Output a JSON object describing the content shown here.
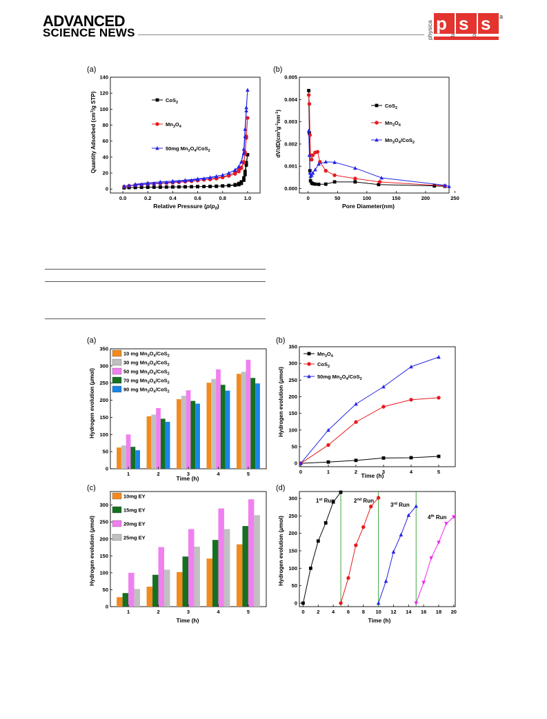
{
  "header": {
    "brand_line1": "ADVANCED",
    "brand_line2": "SCIENCE NEWS",
    "journal_logo": {
      "words": [
        "physica",
        "status",
        "solidi"
      ],
      "letters": [
        "p",
        "s",
        "s"
      ],
      "suffix": "a"
    },
    "accent_color": "#e3342f"
  },
  "figure1": {
    "panels": [
      {
        "label": "(a)",
        "xlabel_main": "Relative Pressure (",
        "xlabel_p": "p",
        "xlabel_mid": "/",
        "xlabel_p0": "p",
        "xlabel_sub": "0",
        "xlabel_end": ")",
        "ylabel_main": "Quantity Adsorbed (cm",
        "ylabel_sup": "3",
        "ylabel_end": "/g STP)",
        "xticks": [
          "0.0",
          "0.2",
          "0.4",
          "0.6",
          "0.8",
          "1.0"
        ],
        "yticks": [
          "0",
          "20",
          "40",
          "60",
          "80",
          "100",
          "120",
          "140"
        ]
      },
      {
        "label": "(b)",
        "xlabel": "Pore Diameter(nm)",
        "ylabel_pre": "dV/dD(cm",
        "ylabel_sup1": "3",
        "ylabel_mid": "g",
        "ylabel_sup2": "-1",
        "ylabel_mid2": "nm",
        "ylabel_sup3": "-1",
        "ylabel_end": ")",
        "xticks": [
          "0",
          "50",
          "100",
          "150",
          "200",
          "250"
        ],
        "yticks": [
          "0.000",
          "0.001",
          "0.002",
          "0.003",
          "0.004",
          "0.005"
        ]
      }
    ]
  },
  "figure2": {
    "panels": [
      {
        "label": "(a)",
        "xlabel": "Time (h)",
        "ylabel_pre": "Hydrogen evolution (",
        "ylabel_mu": "μ",
        "ylabel_post": "mol)",
        "xticks": [
          "1",
          "2",
          "3",
          "4",
          "5"
        ],
        "yticks": [
          "0",
          "50",
          "100",
          "150",
          "200",
          "250",
          "300",
          "350"
        ]
      },
      {
        "label": "(b)",
        "xlabel": "Time (h)",
        "ylabel_pre": "Hydrogen evolution (",
        "ylabel_mu": "μ",
        "ylabel_post": "mol)",
        "xticks": [
          "0",
          "1",
          "2",
          "3",
          "4",
          "5"
        ],
        "yticks": [
          "0",
          "50",
          "100",
          "150",
          "200",
          "250",
          "300",
          "350"
        ]
      },
      {
        "label": "(c)",
        "xlabel": "Time (h)",
        "ylabel_pre": "Hydrogen evolution (",
        "ylabel_mu": "μ",
        "ylabel_post": "mol)",
        "xticks": [
          "1",
          "2",
          "3",
          "4",
          "5"
        ],
        "yticks": [
          "0",
          "50",
          "100",
          "150",
          "200",
          "250",
          "300"
        ]
      },
      {
        "label": "(d)",
        "xlabel": "Time (h)",
        "ylabel_pre": "Hydrogen evolution (",
        "ylabel_mu": "μ",
        "ylabel_post": "mol)",
        "xticks": [
          "0",
          "2",
          "4",
          "6",
          "8",
          "10",
          "12",
          "14",
          "16",
          "18",
          "20"
        ],
        "yticks": [
          "0",
          "50",
          "100",
          "150",
          "200",
          "250",
          "300"
        ],
        "run_labels": [
          {
            "num": "1",
            "sup": "st",
            "word": " Run"
          },
          {
            "num": "2",
            "sup": "nd",
            "word": " Run"
          },
          {
            "num": "3",
            "sup": "rd",
            "word": " Run"
          },
          {
            "num": "4",
            "sup": "th",
            "word": " Run"
          }
        ]
      }
    ]
  },
  "chart_data": [
    {
      "type": "line",
      "panel": "fig1-a",
      "xlabel": "Relative Pressure (p/p0)",
      "ylabel": "Quantity Adsorbed (cm3/g STP)",
      "xlim": [
        -0.1,
        1.1
      ],
      "ylim": [
        -5,
        140
      ],
      "series": [
        {
          "name": "CoS2",
          "color": "#000000",
          "marker": "square",
          "x": [
            0.01,
            0.05,
            0.1,
            0.15,
            0.2,
            0.25,
            0.3,
            0.35,
            0.4,
            0.45,
            0.5,
            0.55,
            0.6,
            0.65,
            0.7,
            0.75,
            0.8,
            0.85,
            0.9,
            0.93,
            0.95,
            0.97,
            0.98,
            0.99,
            1.0,
            0.99,
            0.98,
            0.97,
            0.95,
            0.93,
            0.9,
            0.85,
            0.8,
            0.75,
            0.7,
            0.6,
            0.5,
            0.4,
            0.3,
            0.2,
            0.1
          ],
          "y": [
            1.5,
            1.8,
            2,
            2.1,
            2.2,
            2.3,
            2.4,
            2.5,
            2.6,
            2.7,
            2.8,
            2.9,
            3,
            3.1,
            3.3,
            3.5,
            3.9,
            4.5,
            5.5,
            7,
            9,
            14,
            22,
            33,
            43,
            30,
            18,
            11,
            7,
            5.5,
            4.8,
            4.2,
            3.8,
            3.4,
            3.2,
            3,
            2.8,
            2.6,
            2.4,
            2.2,
            2
          ]
        },
        {
          "name": "Mn3O4",
          "color": "#e8191d",
          "marker": "circle",
          "x": [
            0.01,
            0.05,
            0.1,
            0.15,
            0.2,
            0.25,
            0.3,
            0.35,
            0.4,
            0.45,
            0.5,
            0.55,
            0.6,
            0.65,
            0.7,
            0.75,
            0.8,
            0.85,
            0.9,
            0.93,
            0.95,
            0.97,
            0.98,
            0.99,
            1.0,
            0.99,
            0.98,
            0.97,
            0.95,
            0.93,
            0.9,
            0.85,
            0.8,
            0.75,
            0.7,
            0.6,
            0.5,
            0.4,
            0.3,
            0.2,
            0.1
          ],
          "y": [
            3,
            4,
            4.8,
            5.4,
            6,
            6.5,
            7,
            7.5,
            8,
            8.6,
            9.2,
            9.8,
            10.6,
            11.5,
            12.5,
            13.8,
            15.5,
            17.5,
            21,
            24,
            27,
            34,
            46,
            66,
            89,
            64,
            44,
            33,
            26,
            22,
            19,
            16.5,
            14.5,
            13,
            12,
            10.8,
            9.6,
            8.5,
            7.5,
            6.5,
            5
          ]
        },
        {
          "name": "50mg Mn3O4/CoS2",
          "color": "#2424e6",
          "marker": "triangle",
          "x": [
            0.01,
            0.05,
            0.1,
            0.15,
            0.2,
            0.25,
            0.3,
            0.35,
            0.4,
            0.45,
            0.5,
            0.55,
            0.6,
            0.65,
            0.7,
            0.75,
            0.8,
            0.85,
            0.9,
            0.93,
            0.95,
            0.97,
            0.98,
            0.99,
            1.0,
            0.99,
            0.98,
            0.97,
            0.95,
            0.93,
            0.9,
            0.85,
            0.8,
            0.75,
            0.7,
            0.6,
            0.5,
            0.4,
            0.3,
            0.2,
            0.1
          ],
          "y": [
            3.5,
            4.5,
            5.2,
            5.9,
            6.5,
            7,
            7.6,
            8.2,
            8.8,
            9.5,
            10.2,
            11,
            12,
            13,
            14,
            15.5,
            17.5,
            20,
            24,
            28,
            34,
            50,
            75,
            102,
            124,
            98,
            66,
            45,
            34,
            28,
            23.5,
            20,
            17.5,
            16,
            14.6,
            12.8,
            11.2,
            10,
            9,
            7.8,
            6
          ]
        }
      ]
    },
    {
      "type": "line",
      "panel": "fig1-b",
      "xlabel": "Pore Diameter(nm)",
      "ylabel": "dV/dD(cm3g-1nm-1)",
      "xlim": [
        -15,
        240
      ],
      "ylim": [
        -0.0002,
        0.005
      ],
      "series": [
        {
          "name": "CoS2",
          "color": "#000000",
          "marker": "square",
          "x": [
            1,
            2,
            3,
            4,
            6,
            8,
            12,
            18,
            30,
            45,
            80,
            120,
            215,
            233
          ],
          "y": [
            0.0044,
            0.0025,
            0.0008,
            0.00035,
            0.00025,
            0.00022,
            0.0002,
            0.00019,
            0.0002,
            0.0003,
            0.0003,
            0.00018,
            0.00012,
            0.0001
          ]
        },
        {
          "name": "Mn3O4",
          "color": "#e8191d",
          "marker": "circle",
          "x": [
            1,
            2,
            3,
            4,
            6,
            8,
            12,
            16,
            20,
            30,
            45,
            80,
            122,
            233
          ],
          "y": [
            0.0042,
            0.0038,
            0.0024,
            0.0015,
            0.0013,
            0.0015,
            0.00162,
            0.00165,
            0.0012,
            0.0008,
            0.0006,
            0.00045,
            0.0003,
            0.00012
          ]
        },
        {
          "name": "50mg Mn3O4/CoS2",
          "color": "#2424e6",
          "marker": "triangle",
          "x": [
            1,
            2,
            3,
            4,
            6,
            8,
            12,
            18,
            30,
            45,
            80,
            125,
            233,
            240
          ],
          "y": [
            0.0026,
            0.0015,
            0.0007,
            0.00055,
            0.0006,
            0.0007,
            0.00085,
            0.0011,
            0.0012,
            0.00118,
            0.00092,
            0.00048,
            0.00015,
            0.0001
          ]
        }
      ]
    },
    {
      "type": "bar",
      "panel": "fig2-a",
      "categories": [
        "1",
        "2",
        "3",
        "4",
        "5"
      ],
      "xlabel": "Time (h)",
      "ylabel": "Hydrogen evolution (μmol)",
      "ylim": [
        0,
        350
      ],
      "legend": "top-left",
      "series": [
        {
          "name": "10 mg Mn3O4/CoS2",
          "sub_name": [
            "10 mg Mn",
            "3",
            "O",
            "4",
            "/CoS",
            "2"
          ],
          "color": "#f28a1e",
          "values": [
            62,
            153,
            203,
            251,
            277
          ]
        },
        {
          "name": "30 mg Mn3O4/CoS2",
          "sub_name": [
            "30 mg Mn",
            "3",
            "O",
            "4",
            "/CoS",
            "2"
          ],
          "color": "#c0c0c0",
          "values": [
            68,
            158,
            213,
            262,
            283
          ]
        },
        {
          "name": "50 mg Mn3O4/CoS2",
          "sub_name": [
            "50 mg Mn",
            "3",
            "O",
            "4",
            "/CoS",
            "2"
          ],
          "color": "#f080f0",
          "values": [
            100,
            177,
            229,
            290,
            318
          ]
        },
        {
          "name": "70 mg Mn3O4/CoS2",
          "sub_name": [
            "70 mg Mn",
            "3",
            "O",
            "4",
            "/CoS",
            "2"
          ],
          "color": "#15701f",
          "values": [
            64,
            146,
            198,
            245,
            265
          ]
        },
        {
          "name": "90 mg Mn3O4/CoS2",
          "sub_name": [
            "90 mg Mn",
            "3",
            "O",
            "4",
            "/CoS",
            "2"
          ],
          "color": "#1a85e6",
          "values": [
            54,
            137,
            190,
            228,
            249
          ]
        }
      ]
    },
    {
      "type": "line",
      "panel": "fig2-b",
      "x": [
        0,
        1,
        2,
        3,
        4,
        5
      ],
      "xlabel": "Time (h)",
      "ylabel": "Hydrogen evolution (μmol)",
      "ylim": [
        -10,
        350
      ],
      "legend": "top-left",
      "series": [
        {
          "name": "Mn3O4",
          "sub_name": [
            "Mn",
            "3",
            "O",
            "4",
            "",
            ""
          ],
          "color": "#000000",
          "marker": "square",
          "values": [
            0,
            4,
            9,
            16,
            17,
            21
          ]
        },
        {
          "name": "CoS2",
          "sub_name": [
            "CoS",
            "2",
            "",
            "",
            "",
            ""
          ],
          "color": "#e8191d",
          "marker": "circle",
          "values": [
            0,
            55,
            124,
            170,
            191,
            197
          ]
        },
        {
          "name": "50mg Mn3O4/CoS2",
          "sub_name": [
            "50mg Mn",
            "3",
            "O",
            "4",
            "/CoS",
            "2"
          ],
          "color": "#2424e6",
          "marker": "triangle",
          "values": [
            0,
            100,
            178,
            230,
            290,
            319
          ]
        }
      ]
    },
    {
      "type": "bar",
      "panel": "fig2-c",
      "categories": [
        "1",
        "2",
        "3",
        "4",
        "5"
      ],
      "xlabel": "Time (h)",
      "ylabel": "Hydrogen evolution (μmol)",
      "ylim": [
        0,
        340
      ],
      "legend": "top-left",
      "series": [
        {
          "name": "10mg EY",
          "color": "#f28a1e",
          "values": [
            28,
            59,
            102,
            142,
            184
          ]
        },
        {
          "name": "15mg EY",
          "color": "#15701f",
          "values": [
            40,
            94,
            148,
            197,
            238
          ]
        },
        {
          "name": "20mg EY",
          "color": "#f080f0",
          "values": [
            100,
            176,
            229,
            290,
            317
          ]
        },
        {
          "name": "25mg EY",
          "color": "#c0c0c0",
          "values": [
            52,
            109,
            177,
            229,
            270
          ]
        }
      ]
    },
    {
      "type": "line",
      "panel": "fig2-d",
      "xlabel": "Time (h)",
      "ylabel": "Hydrogen evolution (μmol)",
      "xlim": [
        -0.5,
        20.2
      ],
      "ylim": [
        -10,
        320
      ],
      "vlines": [
        5,
        10,
        15
      ],
      "vline_color": "#2a9d2a",
      "series": [
        {
          "name": "1st Run",
          "color": "#000000",
          "marker": "square",
          "x": [
            0,
            1,
            2,
            3,
            4,
            5
          ],
          "y": [
            0,
            100,
            178,
            230,
            290,
            318
          ]
        },
        {
          "name": "2nd Run",
          "color": "#e8191d",
          "marker": "circle",
          "x": [
            5,
            6,
            7,
            8,
            9,
            10
          ],
          "y": [
            0,
            72,
            166,
            218,
            277,
            302
          ]
        },
        {
          "name": "3rd Run",
          "color": "#2424e6",
          "marker": "triangle",
          "x": [
            10,
            11,
            12,
            13,
            14,
            15
          ],
          "y": [
            0,
            63,
            147,
            196,
            252,
            278
          ]
        },
        {
          "name": "4th Run",
          "color": "#ef23ef",
          "marker": "triangle-down",
          "x": [
            15,
            16,
            17,
            18,
            19,
            20
          ],
          "y": [
            0,
            59,
            129,
            174,
            228,
            247
          ]
        }
      ]
    }
  ]
}
